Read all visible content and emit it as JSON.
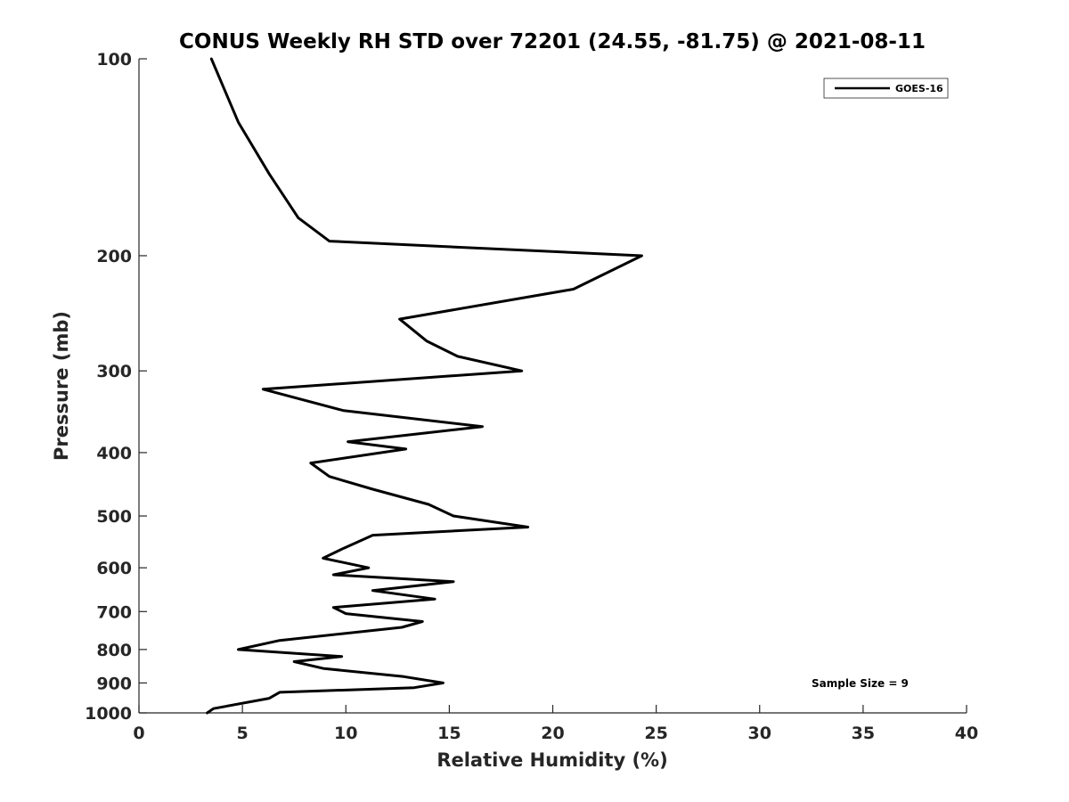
{
  "chart_data": {
    "type": "line",
    "title": "CONUS Weekly RH STD over 72201 (24.55, -81.75) @ 2021-08-11",
    "xlabel": "Relative Humidity (%)",
    "ylabel": "Pressure (mb)",
    "xlim": [
      0,
      40
    ],
    "ylim": [
      100,
      1000
    ],
    "y_scale": "log",
    "y_reversed": true,
    "xticks": [
      0,
      5,
      10,
      15,
      20,
      25,
      30,
      35,
      40
    ],
    "yticks": [
      100,
      200,
      300,
      400,
      500,
      600,
      700,
      800,
      900,
      1000
    ],
    "grid": false,
    "legend_position": "top-right",
    "series": [
      {
        "name": "GOES-16",
        "color": "#000000",
        "points": [
          [
            3.5,
            100
          ],
          [
            4.8,
            125
          ],
          [
            6.3,
            150
          ],
          [
            7.7,
            175
          ],
          [
            9.2,
            190
          ],
          [
            24.3,
            200
          ],
          [
            21.0,
            225
          ],
          [
            12.6,
            250
          ],
          [
            13.9,
            270
          ],
          [
            15.4,
            285
          ],
          [
            18.5,
            300
          ],
          [
            6.0,
            320
          ],
          [
            9.9,
            345
          ],
          [
            16.6,
            365
          ],
          [
            10.1,
            385
          ],
          [
            12.9,
            395
          ],
          [
            8.3,
            415
          ],
          [
            9.2,
            435
          ],
          [
            11.3,
            455
          ],
          [
            14.0,
            480
          ],
          [
            15.2,
            500
          ],
          [
            18.8,
            520
          ],
          [
            11.3,
            535
          ],
          [
            9.9,
            560
          ],
          [
            8.9,
            580
          ],
          [
            11.1,
            600
          ],
          [
            9.4,
            615
          ],
          [
            15.2,
            630
          ],
          [
            11.3,
            650
          ],
          [
            14.3,
            670
          ],
          [
            9.4,
            690
          ],
          [
            10.0,
            705
          ],
          [
            13.7,
            725
          ],
          [
            12.7,
            740
          ],
          [
            6.8,
            775
          ],
          [
            4.8,
            800
          ],
          [
            9.8,
            820
          ],
          [
            7.5,
            835
          ],
          [
            8.9,
            855
          ],
          [
            12.8,
            880
          ],
          [
            14.7,
            900
          ],
          [
            13.3,
            915
          ],
          [
            6.8,
            930
          ],
          [
            6.3,
            950
          ],
          [
            3.6,
            985
          ],
          [
            3.3,
            1000
          ]
        ]
      }
    ],
    "annotations": [
      {
        "text": "Sample Size = 9",
        "position": "bottom-right"
      }
    ]
  }
}
